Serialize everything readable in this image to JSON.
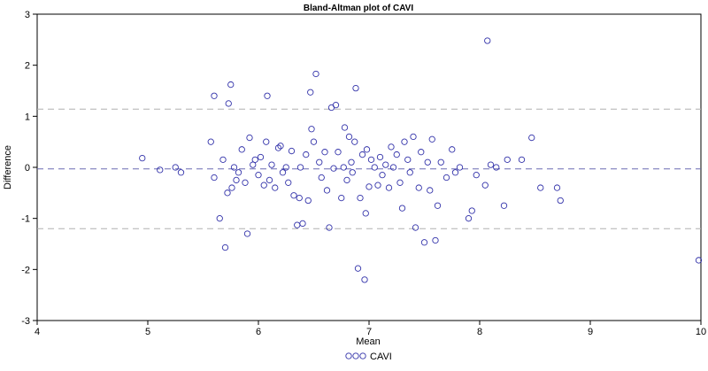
{
  "chart_data": {
    "type": "scatter",
    "title": "Bland-Altman plot of CAVI",
    "xlabel": "Mean",
    "ylabel": "Difference",
    "xlim": [
      4,
      10
    ],
    "ylim": [
      -3,
      3
    ],
    "xticks": [
      "4",
      "5",
      "6",
      "7",
      "8",
      "9",
      "10"
    ],
    "yticks": [
      "3",
      "2",
      "1",
      "0",
      "-1",
      "-2",
      "-3"
    ],
    "reference_lines": {
      "mean_difference": -0.03,
      "upper_limit": 1.14,
      "lower_limit": -1.2
    },
    "legend": {
      "label": "CAVI",
      "position": "bottom"
    },
    "colors": {
      "points": "#3333aa",
      "mean_line": "#6a6ab2",
      "limit_lines": "#b0b0b0",
      "frame": "#000000"
    },
    "series": [
      {
        "name": "CAVI",
        "points": [
          [
            4.95,
            0.18
          ],
          [
            5.11,
            -0.05
          ],
          [
            5.25,
            0.0
          ],
          [
            5.3,
            -0.1
          ],
          [
            5.57,
            0.5
          ],
          [
            5.6,
            1.4
          ],
          [
            5.6,
            -0.2
          ],
          [
            5.65,
            -1.0
          ],
          [
            5.68,
            0.15
          ],
          [
            5.7,
            -1.57
          ],
          [
            5.72,
            -0.5
          ],
          [
            5.73,
            1.25
          ],
          [
            5.75,
            1.62
          ],
          [
            5.76,
            -0.4
          ],
          [
            5.78,
            0.0
          ],
          [
            5.8,
            -0.25
          ],
          [
            5.82,
            -0.1
          ],
          [
            5.85,
            0.35
          ],
          [
            5.88,
            -0.3
          ],
          [
            5.9,
            -1.3
          ],
          [
            5.92,
            0.58
          ],
          [
            5.95,
            0.05
          ],
          [
            5.97,
            0.15
          ],
          [
            6.0,
            -0.15
          ],
          [
            6.02,
            0.2
          ],
          [
            6.05,
            -0.35
          ],
          [
            6.07,
            0.5
          ],
          [
            6.08,
            1.4
          ],
          [
            6.1,
            -0.25
          ],
          [
            6.12,
            0.05
          ],
          [
            6.15,
            -0.4
          ],
          [
            6.18,
            0.38
          ],
          [
            6.2,
            0.42
          ],
          [
            6.22,
            -0.1
          ],
          [
            6.25,
            0.0
          ],
          [
            6.27,
            -0.3
          ],
          [
            6.3,
            0.32
          ],
          [
            6.32,
            -0.55
          ],
          [
            6.35,
            -1.13
          ],
          [
            6.37,
            -0.6
          ],
          [
            6.38,
            0.0
          ],
          [
            6.4,
            -1.1
          ],
          [
            6.43,
            0.25
          ],
          [
            6.45,
            -0.65
          ],
          [
            6.47,
            1.47
          ],
          [
            6.48,
            0.75
          ],
          [
            6.5,
            0.5
          ],
          [
            6.52,
            1.83
          ],
          [
            6.55,
            0.1
          ],
          [
            6.57,
            -0.2
          ],
          [
            6.6,
            0.3
          ],
          [
            6.62,
            -0.45
          ],
          [
            6.64,
            -1.18
          ],
          [
            6.66,
            1.17
          ],
          [
            6.68,
            -0.02
          ],
          [
            6.7,
            1.22
          ],
          [
            6.72,
            0.3
          ],
          [
            6.75,
            -0.6
          ],
          [
            6.77,
            0.0
          ],
          [
            6.78,
            0.78
          ],
          [
            6.8,
            -0.25
          ],
          [
            6.82,
            0.6
          ],
          [
            6.84,
            0.1
          ],
          [
            6.85,
            -0.1
          ],
          [
            6.87,
            0.5
          ],
          [
            6.88,
            1.55
          ],
          [
            6.9,
            -1.98
          ],
          [
            6.92,
            -0.6
          ],
          [
            6.94,
            0.25
          ],
          [
            6.96,
            -2.2
          ],
          [
            6.97,
            -0.9
          ],
          [
            6.98,
            0.35
          ],
          [
            7.0,
            -0.38
          ],
          [
            7.02,
            0.15
          ],
          [
            7.05,
            0.0
          ],
          [
            7.08,
            -0.35
          ],
          [
            7.1,
            0.2
          ],
          [
            7.12,
            -0.15
          ],
          [
            7.15,
            0.05
          ],
          [
            7.18,
            -0.4
          ],
          [
            7.2,
            0.4
          ],
          [
            7.22,
            0.0
          ],
          [
            7.25,
            0.25
          ],
          [
            7.28,
            -0.3
          ],
          [
            7.3,
            -0.8
          ],
          [
            7.32,
            0.5
          ],
          [
            7.35,
            0.15
          ],
          [
            7.37,
            -0.1
          ],
          [
            7.4,
            0.6
          ],
          [
            7.42,
            -1.18
          ],
          [
            7.45,
            -0.4
          ],
          [
            7.47,
            0.3
          ],
          [
            7.5,
            -1.47
          ],
          [
            7.53,
            0.1
          ],
          [
            7.55,
            -0.45
          ],
          [
            7.57,
            0.55
          ],
          [
            7.6,
            -1.43
          ],
          [
            7.62,
            -0.75
          ],
          [
            7.65,
            0.1
          ],
          [
            7.7,
            -0.2
          ],
          [
            7.75,
            0.35
          ],
          [
            7.78,
            -0.1
          ],
          [
            7.82,
            0.0
          ],
          [
            7.9,
            -1.0
          ],
          [
            7.93,
            -0.85
          ],
          [
            7.97,
            -0.15
          ],
          [
            8.05,
            -0.35
          ],
          [
            8.07,
            2.48
          ],
          [
            8.1,
            0.05
          ],
          [
            8.15,
            0.0
          ],
          [
            8.22,
            -0.75
          ],
          [
            8.25,
            0.15
          ],
          [
            8.38,
            0.15
          ],
          [
            8.47,
            0.58
          ],
          [
            8.55,
            -0.4
          ],
          [
            8.7,
            -0.4
          ],
          [
            8.73,
            -0.65
          ],
          [
            9.98,
            -1.82
          ]
        ]
      }
    ]
  }
}
